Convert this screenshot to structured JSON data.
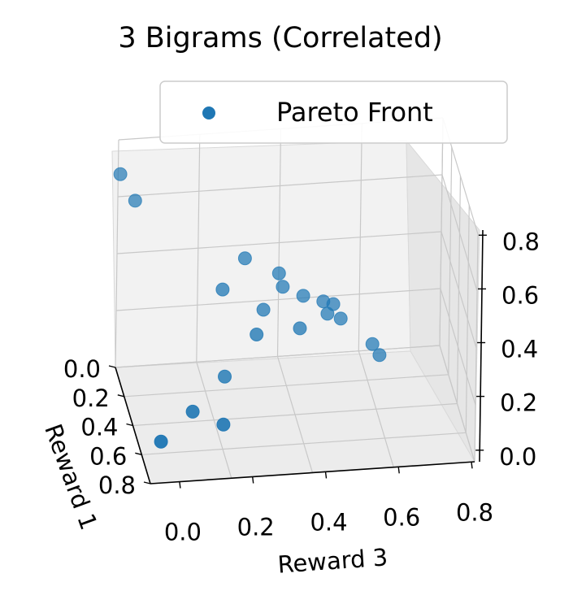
{
  "chart_data": {
    "type": "scatter",
    "projection": "3d",
    "title": "3 Bigrams (Correlated)",
    "xlabel": "Reward 1",
    "ylabel": "Reward 3",
    "zlabel": "",
    "x_ticks": [
      "0.0",
      "0.2",
      "0.4",
      "0.6",
      "0.8"
    ],
    "y_ticks": [
      "0.0",
      "0.2",
      "0.4",
      "0.6",
      "0.8"
    ],
    "z_ticks": [
      "0.0",
      "0.2",
      "0.4",
      "0.6",
      "0.8"
    ],
    "grid": true,
    "legend": {
      "position": "top-right",
      "entries": [
        "Pareto Front"
      ]
    },
    "series": [
      {
        "name": "Pareto Front",
        "color": "#1f77b4",
        "points": [
          {
            "x": 0.06,
            "y": 0.0,
            "z": 0.88
          },
          {
            "x": 0.12,
            "y": 0.04,
            "z": 0.79
          },
          {
            "x": 0.4,
            "y": 0.35,
            "z": 0.65
          },
          {
            "x": 0.45,
            "y": 0.45,
            "z": 0.6
          },
          {
            "x": 0.47,
            "y": 0.46,
            "z": 0.55
          },
          {
            "x": 0.42,
            "y": 0.28,
            "z": 0.53
          },
          {
            "x": 0.5,
            "y": 0.52,
            "z": 0.52
          },
          {
            "x": 0.52,
            "y": 0.58,
            "z": 0.5
          },
          {
            "x": 0.53,
            "y": 0.61,
            "z": 0.49
          },
          {
            "x": 0.48,
            "y": 0.4,
            "z": 0.46
          },
          {
            "x": 0.55,
            "y": 0.59,
            "z": 0.46
          },
          {
            "x": 0.56,
            "y": 0.63,
            "z": 0.44
          },
          {
            "x": 0.6,
            "y": 0.5,
            "z": 0.43
          },
          {
            "x": 0.57,
            "y": 0.37,
            "z": 0.4
          },
          {
            "x": 0.64,
            "y": 0.72,
            "z": 0.36
          },
          {
            "x": 0.66,
            "y": 0.74,
            "z": 0.32
          },
          {
            "x": 0.6,
            "y": 0.27,
            "z": 0.24
          },
          {
            "x": 0.8,
            "y": 0.15,
            "z": 0.2
          },
          {
            "x": 0.85,
            "y": 0.24,
            "z": 0.16
          },
          {
            "x": 0.92,
            "y": 0.04,
            "z": 0.14
          }
        ]
      }
    ]
  }
}
